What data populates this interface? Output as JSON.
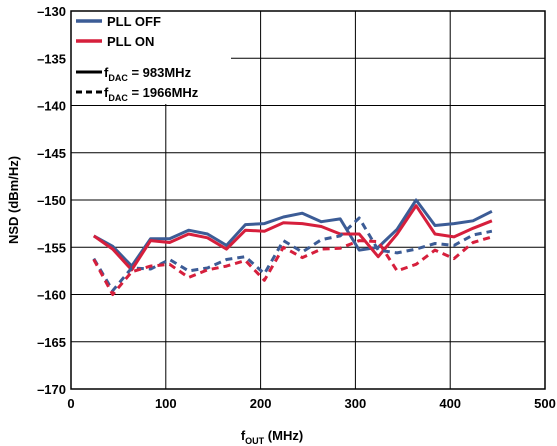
{
  "chart_data": {
    "type": "line",
    "xlabel": {
      "main": "f",
      "sub": "OUT",
      "rest": " (MHz)"
    },
    "ylabel": "NSD (dBm/Hz)",
    "xlim": [
      0,
      500
    ],
    "ylim": [
      -170,
      -130
    ],
    "xticks": [
      0,
      100,
      200,
      300,
      400,
      500
    ],
    "yticks": [
      -130,
      -135,
      -140,
      -145,
      -150,
      -155,
      -160,
      -165,
      -170
    ],
    "xtick_labels": [
      "0",
      "100",
      "200",
      "300",
      "400",
      "500"
    ],
    "ytick_labels": [
      "–130",
      "–135",
      "–140",
      "–145",
      "–150",
      "–155",
      "–160",
      "–165",
      "–170"
    ],
    "grid": true,
    "legend_placement": "top-left",
    "colors": {
      "pll_off": "#3c5c96",
      "pll_on": "#d61f3c",
      "neutral": "#000000"
    },
    "legend": {
      "color_entries": [
        {
          "label": "PLL OFF",
          "color": "#3c5c96"
        },
        {
          "label": "PLL ON",
          "color": "#d61f3c"
        }
      ],
      "style_entries": [
        {
          "style": "solid",
          "main": "f",
          "sub": "DAC",
          "rest": " = 983MHz"
        },
        {
          "style": "dashed",
          "main": "f",
          "sub": "DAC",
          "rest": " = 1966MHz"
        }
      ]
    },
    "series": [
      {
        "name": "PLL OFF, fDAC = 983MHz",
        "color": "#3c5c96",
        "style": "solid",
        "x": [
          24,
          44,
          64,
          84,
          104,
          124,
          144,
          164,
          184,
          204,
          224,
          244,
          264,
          284,
          304,
          324,
          344,
          364,
          384,
          404,
          424,
          444
        ],
        "y": [
          -153.8,
          -154.9,
          -157.0,
          -154.1,
          -154.1,
          -153.2,
          -153.6,
          -154.8,
          -152.6,
          -152.5,
          -151.8,
          -151.4,
          -152.3,
          -152.0,
          -155.3,
          -155.0,
          -153.1,
          -150.0,
          -152.7,
          -152.5,
          -152.2,
          -151.2
        ]
      },
      {
        "name": "PLL ON, fDAC = 983MHz",
        "color": "#d61f3c",
        "style": "solid",
        "x": [
          24,
          44,
          64,
          84,
          104,
          124,
          144,
          164,
          184,
          204,
          224,
          244,
          264,
          284,
          304,
          324,
          344,
          364,
          384,
          404,
          424,
          444
        ],
        "y": [
          -153.8,
          -155.2,
          -157.4,
          -154.3,
          -154.5,
          -153.6,
          -154.0,
          -155.2,
          -153.2,
          -153.3,
          -152.4,
          -152.5,
          -152.8,
          -153.6,
          -153.6,
          -156.0,
          -153.6,
          -150.6,
          -153.6,
          -153.9,
          -153.0,
          -152.2
        ]
      },
      {
        "name": "PLL OFF, fDAC = 1966MHz",
        "color": "#3c5c96",
        "style": "dashed",
        "x": [
          24,
          44,
          64,
          84,
          104,
          124,
          144,
          164,
          184,
          204,
          224,
          244,
          264,
          284,
          304,
          324,
          344,
          364,
          384,
          404,
          424,
          444
        ],
        "y": [
          -156.2,
          -159.6,
          -157.2,
          -157.3,
          -156.3,
          -157.5,
          -157.2,
          -156.3,
          -156.0,
          -157.8,
          -154.3,
          -155.5,
          -154.2,
          -153.8,
          -151.9,
          -155.3,
          -155.6,
          -155.2,
          -154.6,
          -154.8,
          -153.7,
          -153.3
        ]
      },
      {
        "name": "PLL ON, fDAC = 1966MHz",
        "color": "#d61f3c",
        "style": "dashed",
        "x": [
          24,
          44,
          64,
          84,
          104,
          124,
          144,
          164,
          184,
          204,
          224,
          244,
          264,
          284,
          304,
          324,
          344,
          364,
          384,
          404,
          424,
          444
        ],
        "y": [
          -156.3,
          -160.0,
          -157.6,
          -157.0,
          -156.8,
          -158.2,
          -157.4,
          -157.0,
          -156.4,
          -158.5,
          -155.0,
          -156.1,
          -155.2,
          -155.1,
          -154.3,
          -154.4,
          -157.5,
          -156.8,
          -155.3,
          -156.2,
          -154.5,
          -153.9
        ]
      }
    ]
  }
}
